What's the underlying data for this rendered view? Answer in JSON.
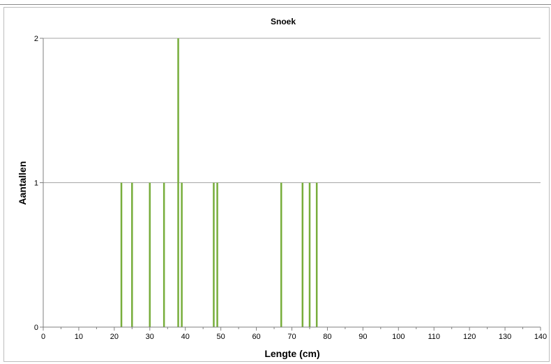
{
  "chart_data": {
    "type": "bar",
    "title": "Snoek",
    "xlabel": "Lengte (cm)",
    "ylabel": "Aantallen",
    "xlim": [
      0,
      140
    ],
    "ylim": [
      0,
      2
    ],
    "x_ticks": [
      "0",
      "10",
      "20",
      "30",
      "40",
      "50",
      "60",
      "70",
      "80",
      "90",
      "100",
      "110",
      "120",
      "130",
      "140"
    ],
    "y_ticks": [
      "0",
      "1",
      "2"
    ],
    "grid": "horizontal",
    "legend": "none",
    "bar_color": "#77ad3b",
    "points": [
      {
        "x": 22,
        "y": 1
      },
      {
        "x": 25,
        "y": 1
      },
      {
        "x": 30,
        "y": 1
      },
      {
        "x": 34,
        "y": 1
      },
      {
        "x": 38,
        "y": 2
      },
      {
        "x": 39,
        "y": 1
      },
      {
        "x": 48,
        "y": 1
      },
      {
        "x": 49,
        "y": 1
      },
      {
        "x": 67,
        "y": 1
      },
      {
        "x": 73,
        "y": 1
      },
      {
        "x": 75,
        "y": 1
      },
      {
        "x": 77,
        "y": 1
      }
    ]
  }
}
